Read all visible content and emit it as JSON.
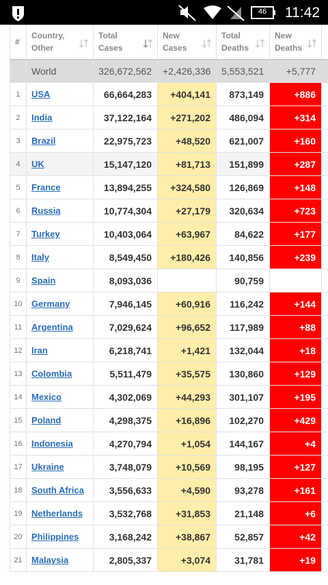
{
  "status_bar": {
    "time": "11:42",
    "battery": "46"
  },
  "table": {
    "headers": [
      "#",
      "Country,\nOther",
      "Total\nCases",
      "New\nCases",
      "Total\nDeaths",
      "New\nDeaths"
    ],
    "world": [
      "World",
      "326,672,562",
      "+2,426,336",
      "5,553,521",
      "+5,777"
    ],
    "rows": [
      [
        "1",
        "USA",
        "66,664,283",
        "+404,141",
        "873,149",
        "+886"
      ],
      [
        "2",
        "India",
        "37,122,164",
        "+271,202",
        "486,094",
        "+314"
      ],
      [
        "3",
        "Brazil",
        "22,975,723",
        "+48,520",
        "621,007",
        "+160"
      ],
      [
        "4",
        "UK",
        "15,147,120",
        "+81,713",
        "151,899",
        "+287"
      ],
      [
        "5",
        "France",
        "13,894,255",
        "+324,580",
        "126,869",
        "+148"
      ],
      [
        "6",
        "Russia",
        "10,774,304",
        "+27,179",
        "320,634",
        "+723"
      ],
      [
        "7",
        "Turkey",
        "10,403,064",
        "+63,967",
        "84,622",
        "+177"
      ],
      [
        "8",
        "Italy",
        "8,549,450",
        "+180,426",
        "140,856",
        "+239"
      ],
      [
        "9",
        "Spain",
        "8,093,036",
        null,
        "90,759",
        null
      ],
      [
        "10",
        "Germany",
        "7,946,145",
        "+60,916",
        "116,242",
        "+144"
      ],
      [
        "11",
        "Argentina",
        "7,029,624",
        "+96,652",
        "117,989",
        "+88"
      ],
      [
        "12",
        "Iran",
        "6,218,741",
        "+1,421",
        "132,044",
        "+18"
      ],
      [
        "13",
        "Colombia",
        "5,511,479",
        "+35,575",
        "130,860",
        "+129"
      ],
      [
        "14",
        "Mexico",
        "4,302,069",
        "+44,293",
        "301,107",
        "+195"
      ],
      [
        "15",
        "Poland",
        "4,298,375",
        "+16,896",
        "102,270",
        "+429"
      ],
      [
        "16",
        "Indonesia",
        "4,270,794",
        "+1,054",
        "144,167",
        "+4"
      ],
      [
        "17",
        "Ukraine",
        "3,748,079",
        "+10,569",
        "98,195",
        "+127"
      ],
      [
        "18",
        "South Africa",
        "3,556,633",
        "+4,590",
        "93,278",
        "+161"
      ],
      [
        "19",
        "Netherlands",
        "3,532,768",
        "+31,853",
        "21,148",
        "+6"
      ],
      [
        "20",
        "Philippines",
        "3,168,242",
        "+38,867",
        "52,857",
        "+42"
      ],
      [
        "21",
        "Malaysia",
        "2,805,337",
        "+3,074",
        "31,781",
        "+19"
      ]
    ]
  }
}
